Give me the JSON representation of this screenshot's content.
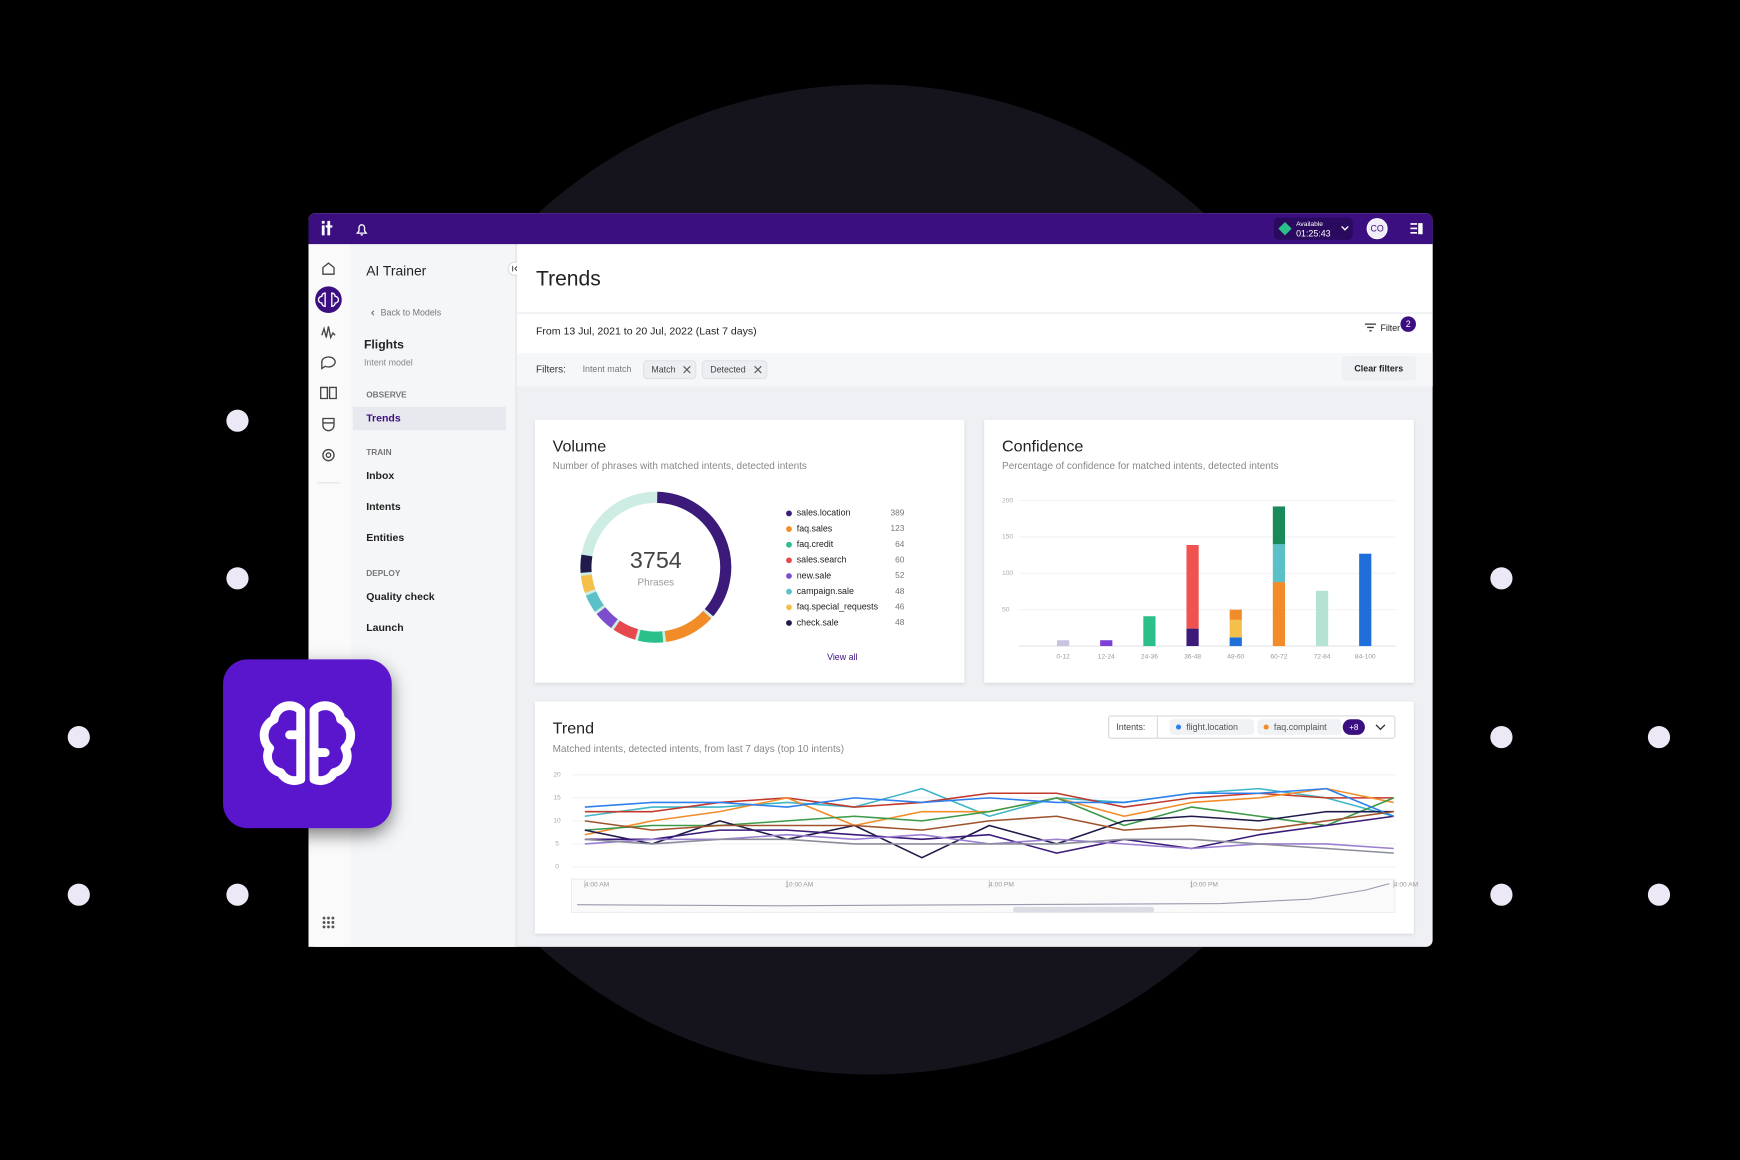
{
  "app": {
    "status": "Available",
    "timer": "01:25:43",
    "avatar": "CO"
  },
  "sidebar": {
    "title": "AI Trainer",
    "back": "Back to Models",
    "model_name": "Flights",
    "model_type": "Intent model",
    "sections": [
      {
        "heading": "OBSERVE",
        "items": [
          "Trends"
        ]
      },
      {
        "heading": "TRAIN",
        "items": [
          "Inbox",
          "Intents",
          "Entities"
        ]
      },
      {
        "heading": "DEPLOY",
        "items": [
          "Quality check",
          "Launch"
        ]
      }
    ]
  },
  "header": {
    "title": "Trends",
    "date_range": "From 13 Jul, 2021 to 20 Jul, 2022 (Last 7 days)",
    "filter_button": "Filter",
    "filter_count": "2",
    "filters_label": "Filters:",
    "filter_field": "Intent match",
    "chips": [
      "Match",
      "Detected"
    ],
    "clear": "Clear filters"
  },
  "chart_data": [
    {
      "type": "donut",
      "title": "Volume",
      "subtitle": "Number of phrases with matched intents, detected intents",
      "total": 3754,
      "center_label": "Phrases",
      "link": "View all",
      "categories": [
        "sales.location",
        "faq.sales",
        "faq.credit",
        "sales.search",
        "new.sale",
        "campaign.sale",
        "faq.special_requests",
        "check.sale"
      ],
      "values": [
        389,
        123,
        64,
        60,
        52,
        48,
        46,
        48
      ],
      "colors": [
        "#3b1a7a",
        "#f28c28",
        "#2bbf8a",
        "#e5484d",
        "#7c4dcc",
        "#5bc0c8",
        "#f4c04a",
        "#1e1b4b"
      ]
    },
    {
      "type": "stacked_bar",
      "title": "Confidence",
      "subtitle": "Percentage of confidence for matched intents, detected intents",
      "categories": [
        "0-12",
        "12-24",
        "24-36",
        "36-48",
        "48-60",
        "60-72",
        "72-84",
        "84-100"
      ],
      "ylim": [
        0,
        200
      ],
      "yticks": [
        50,
        100,
        150,
        200
      ],
      "grid": true,
      "series": [
        {
          "color": "#c9c3e0",
          "values": [
            8,
            null,
            null,
            null,
            null,
            null,
            null,
            null
          ]
        },
        {
          "color": "#7e3fd6",
          "values": [
            null,
            8,
            null,
            null,
            null,
            null,
            null,
            null
          ]
        },
        {
          "color": "#2bbf8a",
          "values": [
            null,
            null,
            41,
            null,
            null,
            null,
            null,
            null
          ]
        },
        {
          "color": "#3b1a7a",
          "values": [
            null,
            null,
            null,
            24,
            null,
            null,
            null,
            null
          ]
        },
        {
          "color": "#ef5350",
          "values": [
            null,
            null,
            null,
            115,
            null,
            null,
            null,
            null
          ]
        },
        {
          "color": "#1e6fd9",
          "values": [
            null,
            null,
            null,
            null,
            12,
            null,
            null,
            127
          ]
        },
        {
          "color": "#f4c04a",
          "values": [
            null,
            null,
            null,
            null,
            24,
            null,
            null,
            null
          ]
        },
        {
          "color": "#f28c28",
          "values": [
            null,
            null,
            null,
            null,
            14,
            88,
            null,
            null
          ]
        },
        {
          "color": "#5bc0c8",
          "values": [
            null,
            null,
            null,
            null,
            null,
            52,
            null,
            null
          ]
        },
        {
          "color": "#1a8a5a",
          "values": [
            null,
            null,
            null,
            null,
            null,
            52,
            null,
            null
          ]
        },
        {
          "color": "#b5e3d3",
          "values": [
            null,
            null,
            null,
            null,
            null,
            null,
            76,
            null
          ]
        }
      ]
    },
    {
      "type": "line",
      "title": "Trend",
      "subtitle": "Matched intents, detected intents, from last 7 days (top 10 intents)",
      "intents_label": "Intents:",
      "selected_intents": [
        {
          "name": "flight.location",
          "color": "#2f80ed"
        },
        {
          "name": "faq.complaint",
          "color": "#f28c28"
        }
      ],
      "more": "+8",
      "categories": [
        "4:00 AM",
        null,
        null,
        "10:00 AM",
        null,
        null,
        "4:00 PM",
        null,
        null,
        "10:00 PM",
        null,
        null,
        "4:00 AM"
      ],
      "ylim": [
        0,
        20
      ],
      "yticks": [
        0,
        5,
        10,
        15,
        20
      ],
      "grid": true,
      "series": [
        {
          "color": "#3fb6c6",
          "values": [
            11,
            13,
            13,
            14,
            13,
            17,
            11,
            15,
            14,
            16,
            17,
            15,
            11
          ]
        },
        {
          "color": "#c0392b",
          "values": [
            12,
            12,
            14,
            15,
            13,
            14,
            16,
            16,
            13,
            15,
            16,
            15,
            15
          ]
        },
        {
          "color": "#f28c28",
          "values": [
            7,
            10,
            12,
            15,
            9,
            12,
            12,
            15,
            11,
            14,
            15,
            17,
            14
          ]
        },
        {
          "color": "#3c9a4a",
          "values": [
            8,
            9,
            9,
            10,
            11,
            10,
            12,
            15,
            9,
            13,
            11,
            9,
            15
          ]
        },
        {
          "color": "#1e1b4b",
          "values": [
            8,
            5,
            10,
            6,
            9,
            2,
            9,
            5,
            10,
            11,
            10,
            12,
            12
          ]
        },
        {
          "color": "#3b1a7a",
          "values": [
            6,
            6,
            8,
            8,
            7,
            6,
            7,
            3,
            6,
            4,
            7,
            9,
            11
          ]
        },
        {
          "color": "#9b7fd1",
          "values": [
            5,
            6,
            6,
            7,
            6,
            7,
            5,
            6,
            5,
            4,
            5,
            5,
            4
          ]
        },
        {
          "color": "#8c8c9c",
          "values": [
            6,
            5,
            6,
            6,
            5,
            5,
            5,
            5,
            6,
            6,
            5,
            4,
            3
          ]
        },
        {
          "color": "#2f80ed",
          "values": [
            13,
            14,
            14,
            13,
            15,
            14,
            15,
            14,
            14,
            16,
            16,
            17,
            11
          ]
        },
        {
          "color": "#a0522d",
          "values": [
            10,
            8,
            9,
            9,
            9,
            8,
            10,
            11,
            8,
            9,
            8,
            10,
            12
          ]
        }
      ]
    }
  ]
}
